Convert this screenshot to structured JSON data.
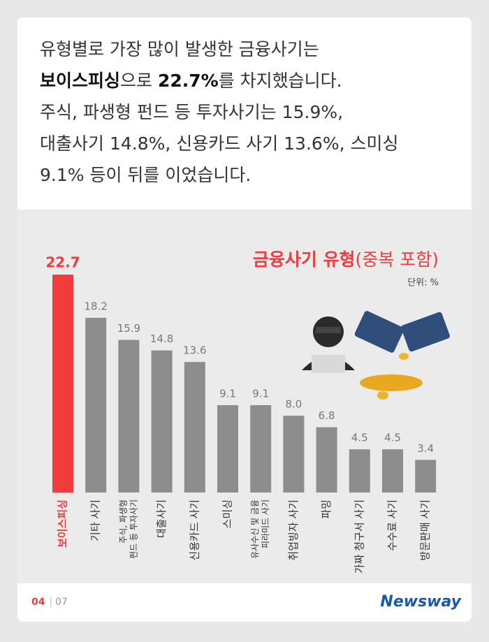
{
  "intro": [
    [
      {
        "text": "유형별로 가장 많이 발생한 금융사기는"
      }
    ],
    [
      {
        "text": "보이스피싱",
        "bold": true
      },
      {
        "text": "으로 "
      },
      {
        "text": "22.7%",
        "bold": true
      },
      {
        "text": "를 차지했습니다."
      }
    ],
    [
      {
        "text": "주식, 파생형 펀드 등 투자사기는 15.9%,"
      }
    ],
    [
      {
        "text": "대출사기 14.8%, 신용카드 사기 13.6%, 스미싱"
      }
    ],
    [
      {
        "text": "9.1% 등이 뒤를 이었습니다."
      }
    ]
  ],
  "chart_data": {
    "type": "bar",
    "title": "금융사기 유형",
    "subtitle": "(중복 포함)",
    "unit": "단위: %",
    "categories": [
      [
        "보이스피싱"
      ],
      [
        "기타 사기"
      ],
      [
        "주식, 파생형",
        "펀드 등 투자사기"
      ],
      [
        "대출사기"
      ],
      [
        "신용카드 사기"
      ],
      [
        "스미싱"
      ],
      [
        "유사수신 및 금융",
        "피라미드 사기"
      ],
      [
        "취업빙자 사기"
      ],
      [
        "파밍"
      ],
      [
        "가짜 청구서 사기"
      ],
      [
        "수수료 사기"
      ],
      [
        "방문판매 사기"
      ]
    ],
    "values": [
      22.7,
      18.2,
      15.9,
      14.8,
      13.6,
      9.1,
      9.1,
      8.0,
      6.8,
      4.5,
      4.5,
      3.4
    ],
    "value_labels": [
      "22.7",
      "18.2",
      "15.9",
      "14.8",
      "13.6",
      "9.1",
      "9.1",
      "8.0",
      "6.8",
      "4.5",
      "4.5",
      "3.4"
    ],
    "colors": [
      "#f23b3b",
      "#8d8d8d",
      "#8d8d8d",
      "#8d8d8d",
      "#8d8d8d",
      "#8d8d8d",
      "#8d8d8d",
      "#8d8d8d",
      "#8d8d8d",
      "#8d8d8d",
      "#8d8d8d",
      "#8d8d8d"
    ]
  },
  "footer": {
    "page": "04",
    "total": "07",
    "logo": "Newsway"
  }
}
